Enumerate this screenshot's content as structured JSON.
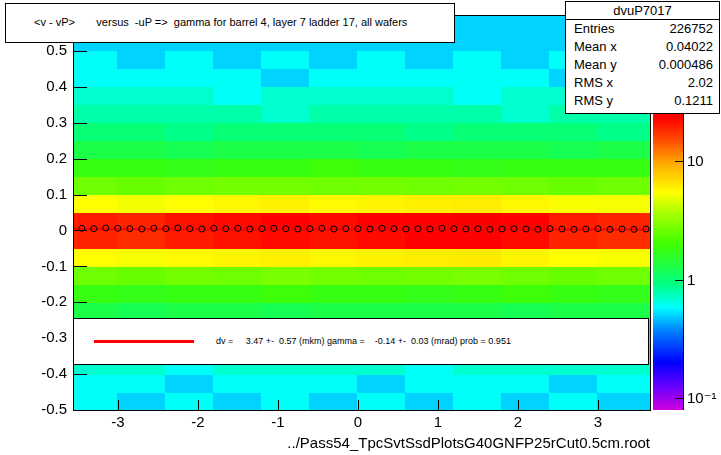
{
  "chart_data": {
    "type": "heatmap",
    "title": "<v - vP>       versus  -uP =>  gamma for barrel 4, layer 7 ladder 17, all wafers",
    "x_label": "../Pass54_TpcSvtSsdPlotsG40GNFP25rCut0.5cm.root",
    "xlim": [
      -3.56,
      3.65
    ],
    "xticks": [
      -3,
      -2,
      -1,
      0,
      1,
      2,
      3
    ],
    "ylim": [
      -0.5,
      0.6
    ],
    "yticks": [
      -0.5,
      -0.4,
      -0.3,
      -0.2,
      -0.1,
      0,
      0.1,
      0.2,
      0.3,
      0.4,
      0.5
    ],
    "grid": false,
    "cells": {
      "x_edges": [
        -3.6,
        -3,
        -2.4,
        -1.8,
        -1.2,
        -0.6,
        0,
        0.6,
        1.2,
        1.8,
        2.4,
        3,
        3.65
      ],
      "y_edges": [
        -0.5,
        -0.45,
        -0.4,
        -0.35,
        -0.3,
        -0.25,
        -0.2,
        -0.15,
        -0.1,
        -0.05,
        0,
        0.05,
        0.1,
        0.15,
        0.2,
        0.25,
        0.3,
        0.35,
        0.4,
        0.45,
        0.5,
        0.55,
        0.6
      ],
      "counts": [
        [
          0.6,
          0.5,
          0.6,
          0.5,
          0.6,
          0.5,
          0.6,
          0.5,
          0.6,
          0.5,
          0.6,
          0.5
        ],
        [
          0.6,
          0.6,
          0.5,
          0.6,
          0.6,
          0.6,
          0.5,
          0.6,
          0.6,
          0.6,
          0.5,
          0.6
        ],
        [
          0.7,
          0.7,
          0.6,
          0.7,
          0.7,
          0.7,
          0.7,
          0.6,
          0.7,
          0.7,
          0.7,
          0.7
        ],
        [
          0.8,
          0.8,
          0.8,
          0.7,
          0.8,
          0.8,
          0.8,
          0.8,
          0.7,
          0.8,
          0.8,
          0.8
        ],
        [
          1.0,
          0.9,
          1.0,
          1.0,
          0.9,
          1.0,
          1.0,
          1.0,
          0.9,
          1.0,
          1.0,
          0.9
        ],
        [
          1.3,
          1.2,
          1.3,
          1.3,
          1.2,
          1.3,
          1.3,
          1.3,
          1.3,
          1.2,
          1.3,
          1.3
        ],
        [
          1.8,
          1.7,
          1.8,
          1.8,
          1.9,
          1.8,
          1.8,
          1.7,
          1.8,
          1.9,
          1.8,
          1.7
        ],
        [
          2.6,
          2.5,
          2.7,
          2.6,
          2.8,
          2.7,
          2.6,
          2.7,
          2.8,
          2.6,
          2.5,
          2.6
        ],
        [
          5.5,
          5.2,
          5.6,
          5.8,
          6.0,
          5.7,
          5.9,
          6.1,
          6.2,
          5.8,
          5.4,
          5.3
        ],
        [
          19,
          18,
          20,
          21,
          22,
          21,
          22,
          23,
          24,
          22,
          19,
          18
        ],
        [
          20,
          19,
          21,
          22,
          23,
          22,
          23,
          24,
          25,
          23,
          20,
          19
        ],
        [
          5.4,
          5.1,
          5.5,
          5.7,
          5.9,
          5.6,
          5.8,
          6.0,
          6.1,
          5.7,
          5.3,
          5.2
        ],
        [
          2.6,
          2.5,
          2.6,
          2.7,
          2.7,
          2.6,
          2.7,
          2.6,
          2.7,
          2.6,
          2.5,
          2.6
        ],
        [
          1.8,
          1.8,
          1.7,
          1.8,
          1.8,
          1.9,
          1.8,
          1.8,
          1.7,
          1.8,
          1.8,
          1.8
        ],
        [
          1.3,
          1.3,
          1.2,
          1.3,
          1.3,
          1.3,
          1.2,
          1.3,
          1.3,
          1.3,
          1.2,
          1.3
        ],
        [
          1.0,
          1.0,
          0.9,
          1.0,
          1.0,
          1.0,
          1.0,
          0.9,
          1.0,
          1.0,
          1.0,
          0.9
        ],
        [
          0.8,
          0.8,
          0.8,
          0.8,
          0.7,
          0.8,
          0.8,
          0.8,
          0.8,
          0.7,
          0.8,
          0.8
        ],
        [
          0.7,
          0.7,
          0.7,
          0.6,
          0.7,
          0.7,
          0.7,
          0.7,
          0.6,
          0.7,
          0.7,
          0.7
        ],
        [
          0.6,
          0.6,
          0.6,
          0.6,
          0.5,
          0.6,
          0.6,
          0.6,
          0.6,
          0.6,
          0.5,
          0.6
        ],
        [
          0.6,
          0.5,
          0.6,
          0.5,
          0.6,
          0.5,
          0.6,
          0.5,
          0.6,
          0.5,
          0.6,
          0.5
        ],
        [
          0.5,
          0.5,
          0.5,
          0.5,
          0.5,
          0.5,
          0.5,
          0.5,
          0.5,
          0.5,
          0.5,
          0.5
        ],
        [
          0.5,
          0.5,
          0.5,
          0.5,
          0.5,
          0.5,
          0.5,
          0.5,
          0.5,
          0.5,
          0.5,
          0.5
        ]
      ]
    },
    "color_bar": {
      "log": true,
      "range": [
        0.08,
        170
      ],
      "ticks": [
        {
          "value": 0.1,
          "label": "10⁻¹"
        },
        1,
        10
      ]
    },
    "series": [
      {
        "type": "line",
        "color": "#ff0000",
        "x": [
          -3.56,
          3.65
        ],
        "values": [
          0.004,
          0.003
        ]
      },
      {
        "type": "scatter",
        "marker": "circle",
        "color": "#000000",
        "x": [
          -3.45,
          -3.3,
          -3.15,
          -3,
          -2.85,
          -2.7,
          -2.55,
          -2.4,
          -2.25,
          -2.1,
          -1.95,
          -1.8,
          -1.65,
          -1.5,
          -1.35,
          -1.2,
          -1.05,
          -0.9,
          -0.75,
          -0.6,
          -0.45,
          -0.3,
          -0.15,
          0,
          0.15,
          0.3,
          0.45,
          0.6,
          0.75,
          0.9,
          1.05,
          1.2,
          1.35,
          1.5,
          1.65,
          1.8,
          1.95,
          2.1,
          2.25,
          2.4,
          2.55,
          2.7,
          2.85,
          3,
          3.15,
          3.3,
          3.45,
          3.6
        ],
        "values": [
          0.006,
          0.005,
          0.007,
          0.006,
          0.005,
          0.004,
          0.006,
          0.005,
          0.007,
          0.005,
          0.004,
          0.006,
          0.005,
          0.006,
          0.004,
          0.005,
          0.006,
          0.005,
          0.004,
          0.005,
          0.006,
          0.004,
          0.005,
          0.005,
          0.004,
          0.006,
          0.005,
          0.004,
          0.005,
          0.004,
          0.006,
          0.005,
          0.004,
          0.005,
          0.003,
          0.004,
          0.005,
          0.004,
          0.003,
          0.005,
          0.004,
          0.003,
          0.004,
          0.005,
          0.003,
          0.004,
          0.003,
          0.004
        ]
      }
    ],
    "stats_box": {
      "title": "dvuP7017",
      "rows": [
        {
          "label": "Entries",
          "value": 226752
        },
        {
          "label": "Mean x",
          "value": 0.04022
        },
        {
          "label": "Mean y",
          "value": 0.000486
        },
        {
          "label": "RMS x",
          "value": 2.02
        },
        {
          "label": "RMS y",
          "value": 0.1211
        }
      ]
    },
    "fit_text": "dv =     3.47 +-  0.57 (mkm) gamma =    -0.14 +-  0.03 (mrad) prob = 0.951"
  }
}
